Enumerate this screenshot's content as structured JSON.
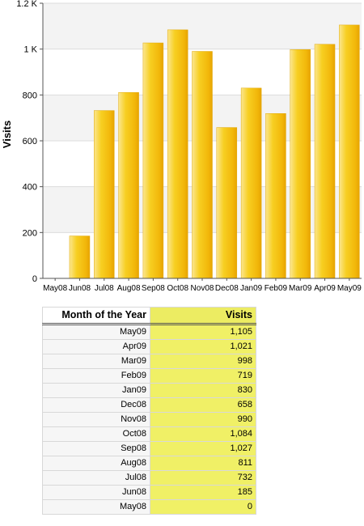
{
  "chart_data": {
    "type": "bar",
    "ylabel": "Visits",
    "categories": [
      "May08",
      "Jun08",
      "Jul08",
      "Aug08",
      "Sep08",
      "Oct08",
      "Nov08",
      "Dec08",
      "Jan09",
      "Feb09",
      "Mar09",
      "Apr09",
      "May09"
    ],
    "values": [
      0,
      185,
      732,
      811,
      1027,
      1084,
      990,
      658,
      830,
      719,
      998,
      1021,
      1105
    ],
    "ylim": [
      0,
      1200
    ],
    "yticks": [
      {
        "value": 0,
        "label": "0"
      },
      {
        "value": 200,
        "label": "200"
      },
      {
        "value": 400,
        "label": "400"
      },
      {
        "value": 600,
        "label": "600"
      },
      {
        "value": 800,
        "label": "800"
      },
      {
        "value": 1000,
        "label": "1 K"
      },
      {
        "value": 1200,
        "label": "1.2 K"
      }
    ],
    "grid": true,
    "bar_color": "#f5c30f"
  },
  "table": {
    "headers": {
      "month": "Month of the Year",
      "visits": "Visits"
    },
    "rows": [
      {
        "month": "May09",
        "visits": "1,105"
      },
      {
        "month": "Apr09",
        "visits": "1,021"
      },
      {
        "month": "Mar09",
        "visits": "998"
      },
      {
        "month": "Feb09",
        "visits": "719"
      },
      {
        "month": "Jan09",
        "visits": "830"
      },
      {
        "month": "Dec08",
        "visits": "658"
      },
      {
        "month": "Nov08",
        "visits": "990"
      },
      {
        "month": "Oct08",
        "visits": "1,084"
      },
      {
        "month": "Sep08",
        "visits": "1,027"
      },
      {
        "month": "Aug08",
        "visits": "811"
      },
      {
        "month": "Jul08",
        "visits": "732"
      },
      {
        "month": "Jun08",
        "visits": "185"
      },
      {
        "month": "May08",
        "visits": "0"
      }
    ]
  }
}
